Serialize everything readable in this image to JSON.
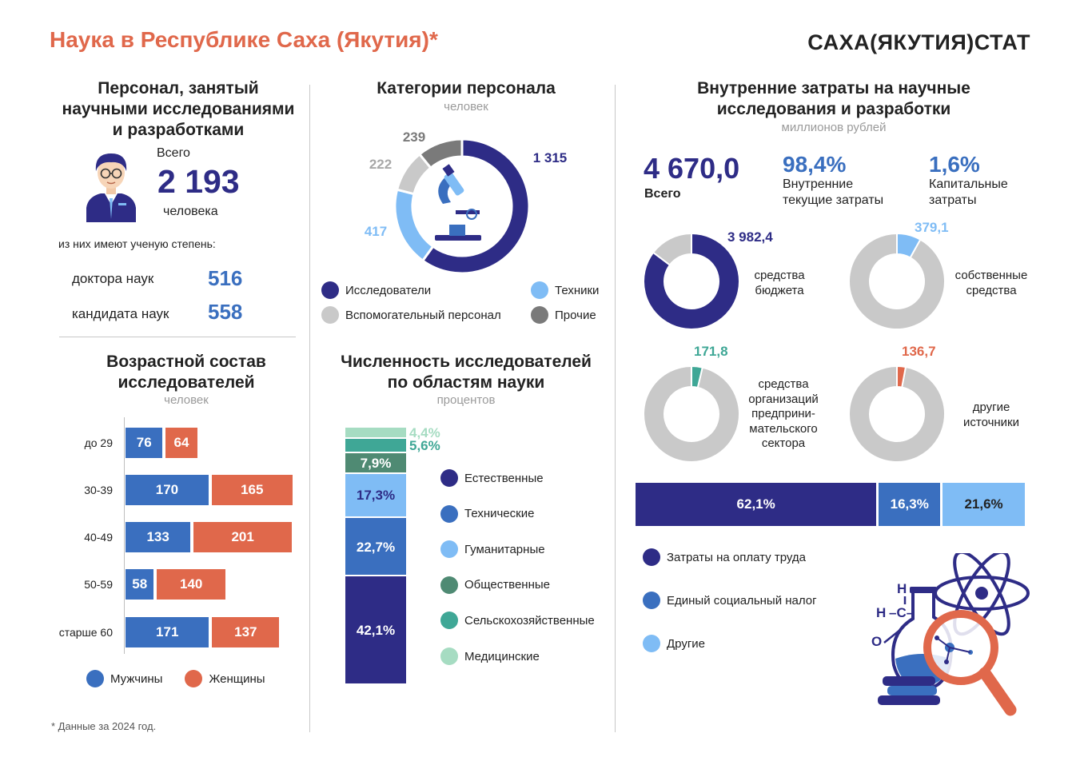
{
  "header": {
    "title": "Наука в Республике Саха (Якутия)*",
    "brand": "САХА(ЯКУТИЯ)СТАТ"
  },
  "personnel": {
    "heading_l1": "Персонал, занятый",
    "heading_l2": "научными исследованиями",
    "heading_l3": "и разработками",
    "total_label": "Всего",
    "total_value": "2 193",
    "total_unit": "человека",
    "degree_intro": "из них имеют ученую степень:",
    "doctors_label": "доктора наук",
    "doctors_value": "516",
    "candidates_label": "кандидата наук",
    "candidates_value": "558"
  },
  "footnote": "* Данные за 2024 год.",
  "colors": {
    "dark_blue": "#2e2c86",
    "mid_blue": "#3a6fbf",
    "light_blue": "#7fbcf5",
    "grey": "#c9c9c9",
    "dark_grey": "#7a7a7a",
    "orange": "#e0684b",
    "dark_green": "#4f8a73",
    "teal": "#3fa796",
    "light_green": "#a6dcc2"
  },
  "chart_data": [
    {
      "id": "categories",
      "type": "pie",
      "title": "Категории персонала",
      "subtitle": "человек",
      "series": [
        {
          "name": "Исследователи",
          "value": 1315,
          "label": "1 315",
          "color": "#2e2c86"
        },
        {
          "name": "Техники",
          "value": 417,
          "label": "417",
          "color": "#7fbcf5"
        },
        {
          "name": "Вспомогательный персонал",
          "value": 222,
          "label": "222",
          "color": "#c9c9c9"
        },
        {
          "name": "Прочие",
          "value": 239,
          "label": "239",
          "color": "#7a7a7a"
        }
      ]
    },
    {
      "id": "age",
      "type": "bar",
      "title_l1": "Возрастной состав",
      "title_l2": "исследователей",
      "subtitle": "человек",
      "categories": [
        "до 29",
        "30-39",
        "40-49",
        "50-59",
        "старше 60"
      ],
      "series": [
        {
          "name": "Мужчины",
          "values": [
            76,
            170,
            133,
            58,
            171
          ],
          "color": "#3a6fbf"
        },
        {
          "name": "Женщины",
          "values": [
            64,
            165,
            201,
            140,
            137
          ],
          "color": "#e0684b"
        }
      ]
    },
    {
      "id": "fields",
      "type": "bar",
      "stacked": true,
      "title_l1": "Численность исследователей",
      "title_l2": "по областям науки",
      "subtitle": "процентов",
      "series": [
        {
          "name": "Естественные",
          "value": 42.1,
          "label": "42,1%",
          "color": "#2e2c86"
        },
        {
          "name": "Технические",
          "value": 22.7,
          "label": "22,7%",
          "color": "#3a6fbf"
        },
        {
          "name": "Гуманитарные",
          "value": 17.3,
          "label": "17,3%",
          "color": "#7fbcf5"
        },
        {
          "name": "Общественные",
          "value": 7.9,
          "label": "7,9%",
          "color": "#4f8a73"
        },
        {
          "name": "Сельскохозяйственные",
          "value": 5.6,
          "label": "5,6%",
          "color": "#3fa796"
        },
        {
          "name": "Медицинские",
          "value": 4.4,
          "label": "4,4%",
          "color": "#a6dcc2"
        }
      ]
    },
    {
      "id": "expenses",
      "type": "pie",
      "title_l1": "Внутренние затраты на научные",
      "title_l2": "исследования и разработки",
      "subtitle": "миллионов рублей",
      "total_value": "4 670,0",
      "total_label": "Всего",
      "current_pct": "98,4%",
      "current_label_l1": "Внутренние",
      "current_label_l2": "текущие затраты",
      "capital_pct": "1,6%",
      "capital_label_l1": "Капитальные",
      "capital_label_l2": "затраты",
      "total": 4670.0,
      "sources": [
        {
          "name_l1": "средства",
          "name_l2": "бюджета",
          "value": 3982.4,
          "label": "3 982,4",
          "color": "#2e2c86"
        },
        {
          "name_l1": "собственные",
          "name_l2": "средства",
          "value": 379.1,
          "label": "379,1",
          "color": "#7fbcf5"
        },
        {
          "name_lines": [
            "средства",
            "организаций",
            "предприни-",
            "мательского",
            "сектора"
          ],
          "value": 171.8,
          "label": "171,8",
          "color": "#3fa796"
        },
        {
          "name_l1": "другие",
          "name_l2": "источники",
          "value": 136.7,
          "label": "136,7",
          "color": "#e0684b"
        }
      ]
    },
    {
      "id": "structure",
      "type": "bar",
      "stacked": true,
      "series": [
        {
          "name": "Затраты на оплату труда",
          "value": 62.1,
          "label": "62,1%",
          "color": "#2e2c86"
        },
        {
          "name": "Единый социальный налог",
          "value": 16.3,
          "label": "16,3%",
          "color": "#3a6fbf"
        },
        {
          "name": "Другие",
          "value": 21.6,
          "label": "21,6%",
          "color": "#7fbcf5"
        }
      ]
    }
  ]
}
